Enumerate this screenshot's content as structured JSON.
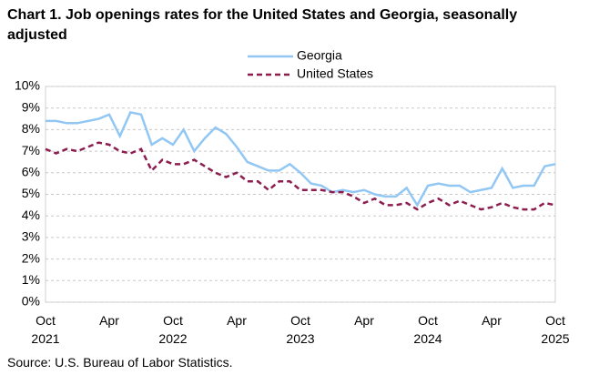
{
  "chart_data": {
    "type": "line",
    "title": "Chart 1. Job openings rates for the United States and Georgia, seasonally adjusted",
    "source": "Source: U.S. Bureau of Labor Statistics.",
    "categories": [
      "Oct\n2021",
      null,
      null,
      null,
      null,
      null,
      "Apr",
      null,
      null,
      null,
      null,
      null,
      "Oct\n2022",
      null,
      null,
      null,
      null,
      null,
      "Apr",
      null,
      null,
      null,
      null,
      null,
      "Oct\n2023",
      null,
      null,
      null,
      null,
      null,
      "Apr",
      null,
      null,
      null,
      null,
      null,
      "Oct\n2024",
      null,
      null,
      null,
      null,
      null,
      "Apr",
      null,
      null,
      null,
      null,
      null,
      "Oct\n2025"
    ],
    "series": [
      {
        "name": "Georgia",
        "color": "#92c7f3",
        "dashed": false,
        "values": [
          8.4,
          8.4,
          8.3,
          8.3,
          8.4,
          8.5,
          8.7,
          7.7,
          8.8,
          8.7,
          7.3,
          7.6,
          7.3,
          8.0,
          7.0,
          7.6,
          8.1,
          7.8,
          7.2,
          6.5,
          6.3,
          6.1,
          6.1,
          6.4,
          6.0,
          5.5,
          5.4,
          5.1,
          5.2,
          5.1,
          5.2,
          5.0,
          4.9,
          4.9,
          5.3,
          4.5,
          5.4,
          5.5,
          5.4,
          5.4,
          5.1,
          5.2,
          5.3,
          6.2,
          5.3,
          5.4,
          5.4,
          6.3,
          6.4
        ]
      },
      {
        "name": "United States",
        "color": "#8c1d4f",
        "dashed": true,
        "values": [
          7.1,
          6.9,
          7.1,
          7.0,
          7.2,
          7.4,
          7.3,
          7.0,
          6.9,
          7.1,
          6.1,
          6.6,
          6.4,
          6.4,
          6.6,
          6.3,
          6.0,
          5.8,
          6.0,
          5.6,
          5.6,
          5.2,
          5.6,
          5.6,
          5.2,
          5.2,
          5.2,
          5.1,
          5.1,
          4.9,
          4.6,
          4.8,
          4.5,
          4.5,
          4.6,
          4.3,
          4.6,
          4.8,
          4.5,
          4.7,
          4.5,
          4.3,
          4.4,
          4.6,
          4.4,
          4.3,
          4.3,
          4.6,
          4.5
        ]
      }
    ],
    "ylim": [
      0,
      10
    ],
    "yticks": [
      {
        "value": 0,
        "label": "0%"
      },
      {
        "value": 1,
        "label": "1%"
      },
      {
        "value": 2,
        "label": "2%"
      },
      {
        "value": 3,
        "label": "3%"
      },
      {
        "value": 4,
        "label": "4%"
      },
      {
        "value": 5,
        "label": "5%"
      },
      {
        "value": 6,
        "label": "6%"
      },
      {
        "value": 7,
        "label": "7%"
      },
      {
        "value": 8,
        "label": "8%"
      },
      {
        "value": 9,
        "label": "9%"
      },
      {
        "value": 10,
        "label": "10%"
      }
    ],
    "grid": true
  }
}
